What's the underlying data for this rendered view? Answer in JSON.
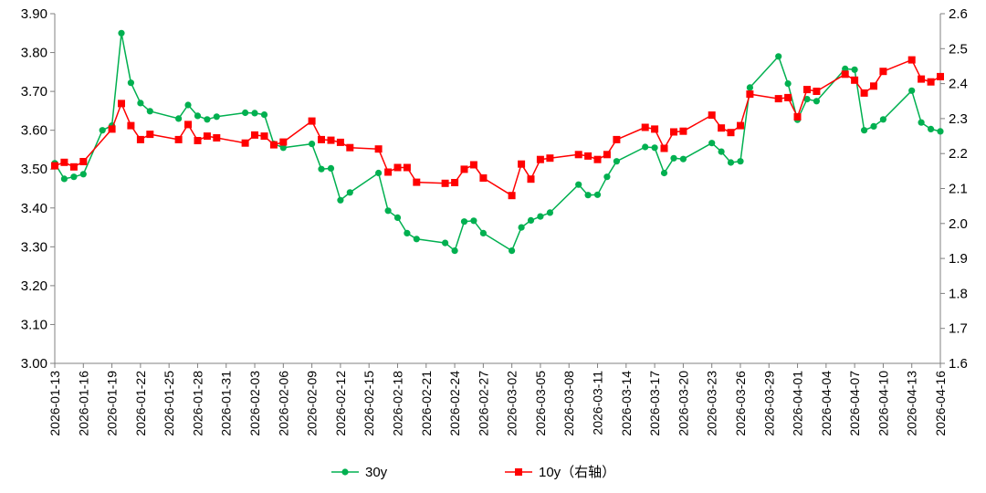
{
  "chart_data": {
    "type": "line",
    "x_tick_labels": [
      "2026-01-13",
      "2026-01-16",
      "2026-01-19",
      "2026-01-22",
      "2026-01-25",
      "2026-01-28",
      "2026-01-31",
      "2026-02-03",
      "2026-02-06",
      "2026-02-09",
      "2026-02-12",
      "2026-02-15",
      "2026-02-18",
      "2026-02-21",
      "2026-02-24",
      "2026-02-27",
      "2026-03-02",
      "2026-03-05",
      "2026-03-08",
      "2026-03-11",
      "2026-03-14",
      "2026-03-17",
      "2026-03-20",
      "2026-03-23",
      "2026-03-26",
      "2026-03-29",
      "2026-04-01",
      "2026-04-04",
      "2026-04-07",
      "2026-04-10",
      "2026-04-13",
      "2026-04-16"
    ],
    "left_axis": {
      "ylim": [
        3.0,
        3.9
      ],
      "ticks": [
        "3.00",
        "3.10",
        "3.20",
        "3.30",
        "3.40",
        "3.50",
        "3.60",
        "3.70",
        "3.80",
        "3.90"
      ]
    },
    "right_axis": {
      "ylim": [
        1.6,
        2.6
      ],
      "ticks": [
        "1.6",
        "1.7",
        "1.8",
        "1.9",
        "2.0",
        "2.1",
        "2.2",
        "2.3",
        "2.4",
        "2.5",
        "2.6"
      ]
    },
    "series": [
      {
        "name": "30y",
        "axis": "left",
        "color": "#00b050",
        "marker": "circle",
        "points": [
          [
            "2026-01-13",
            3.515
          ],
          [
            "2026-01-14",
            3.475
          ],
          [
            "2026-01-15",
            3.48
          ],
          [
            "2026-01-16",
            3.487
          ],
          [
            "2026-01-18",
            3.6
          ],
          [
            "2026-01-19",
            3.612
          ],
          [
            "2026-01-20",
            3.85
          ],
          [
            "2026-01-21",
            3.722
          ],
          [
            "2026-01-22",
            3.67
          ],
          [
            "2026-01-23",
            3.649
          ],
          [
            "2026-01-26",
            3.63
          ],
          [
            "2026-01-27",
            3.665
          ],
          [
            "2026-01-28",
            3.637
          ],
          [
            "2026-01-29",
            3.628
          ],
          [
            "2026-01-30",
            3.635
          ],
          [
            "2026-02-02",
            3.645
          ],
          [
            "2026-02-03",
            3.644
          ],
          [
            "2026-02-04",
            3.64
          ],
          [
            "2026-02-05",
            3.565
          ],
          [
            "2026-02-06",
            3.555
          ],
          [
            "2026-02-09",
            3.565
          ],
          [
            "2026-02-10",
            3.5
          ],
          [
            "2026-02-11",
            3.502
          ],
          [
            "2026-02-12",
            3.42
          ],
          [
            "2026-02-13",
            3.44
          ],
          [
            "2026-02-16",
            3.49
          ],
          [
            "2026-02-17",
            3.393
          ],
          [
            "2026-02-18",
            3.375
          ],
          [
            "2026-02-19",
            3.335
          ],
          [
            "2026-02-20",
            3.32
          ],
          [
            "2026-02-23",
            3.31
          ],
          [
            "2026-02-24",
            3.29
          ],
          [
            "2026-02-25",
            3.365
          ],
          [
            "2026-02-26",
            3.367
          ],
          [
            "2026-02-27",
            3.335
          ],
          [
            "2026-03-02",
            3.29
          ],
          [
            "2026-03-03",
            3.35
          ],
          [
            "2026-03-04",
            3.368
          ],
          [
            "2026-03-05",
            3.378
          ],
          [
            "2026-03-06",
            3.388
          ],
          [
            "2026-03-09",
            3.46
          ],
          [
            "2026-03-10",
            3.433
          ],
          [
            "2026-03-11",
            3.434
          ],
          [
            "2026-03-12",
            3.48
          ],
          [
            "2026-03-13",
            3.52
          ],
          [
            "2026-03-16",
            3.557
          ],
          [
            "2026-03-17",
            3.555
          ],
          [
            "2026-03-18",
            3.49
          ],
          [
            "2026-03-19",
            3.528
          ],
          [
            "2026-03-20",
            3.526
          ],
          [
            "2026-03-23",
            3.567
          ],
          [
            "2026-03-24",
            3.545
          ],
          [
            "2026-03-25",
            3.517
          ],
          [
            "2026-03-26",
            3.52
          ],
          [
            "2026-03-27",
            3.71
          ],
          [
            "2026-03-30",
            3.79
          ],
          [
            "2026-03-31",
            3.72
          ],
          [
            "2026-04-01",
            3.627
          ],
          [
            "2026-04-02",
            3.68
          ],
          [
            "2026-04-03",
            3.675
          ],
          [
            "2026-04-06",
            3.758
          ],
          [
            "2026-04-07",
            3.756
          ],
          [
            "2026-04-08",
            3.6
          ],
          [
            "2026-04-09",
            3.61
          ],
          [
            "2026-04-10",
            3.628
          ],
          [
            "2026-04-13",
            3.702
          ],
          [
            "2026-04-14",
            3.62
          ],
          [
            "2026-04-15",
            3.603
          ],
          [
            "2026-04-16",
            3.597
          ]
        ]
      },
      {
        "name": "10y（右轴）",
        "axis": "right",
        "color": "#ff0000",
        "marker": "square",
        "points": [
          [
            "2026-01-13",
            2.165
          ],
          [
            "2026-01-14",
            2.175
          ],
          [
            "2026-01-15",
            2.162
          ],
          [
            "2026-01-16",
            2.177
          ],
          [
            "2026-01-19",
            2.27
          ],
          [
            "2026-01-20",
            2.343
          ],
          [
            "2026-01-21",
            2.28
          ],
          [
            "2026-01-22",
            2.24
          ],
          [
            "2026-01-23",
            2.255
          ],
          [
            "2026-01-26",
            2.24
          ],
          [
            "2026-01-27",
            2.283
          ],
          [
            "2026-01-28",
            2.237
          ],
          [
            "2026-01-29",
            2.25
          ],
          [
            "2026-01-30",
            2.245
          ],
          [
            "2026-02-02",
            2.23
          ],
          [
            "2026-02-03",
            2.253
          ],
          [
            "2026-02-04",
            2.25
          ],
          [
            "2026-02-05",
            2.225
          ],
          [
            "2026-02-06",
            2.233
          ],
          [
            "2026-02-09",
            2.293
          ],
          [
            "2026-02-10",
            2.24
          ],
          [
            "2026-02-11",
            2.238
          ],
          [
            "2026-02-12",
            2.232
          ],
          [
            "2026-02-13",
            2.217
          ],
          [
            "2026-02-16",
            2.213
          ],
          [
            "2026-02-17",
            2.147
          ],
          [
            "2026-02-18",
            2.16
          ],
          [
            "2026-02-19",
            2.16
          ],
          [
            "2026-02-20",
            2.118
          ],
          [
            "2026-02-23",
            2.115
          ],
          [
            "2026-02-24",
            2.117
          ],
          [
            "2026-02-25",
            2.155
          ],
          [
            "2026-02-26",
            2.168
          ],
          [
            "2026-02-27",
            2.13
          ],
          [
            "2026-03-02",
            2.08
          ],
          [
            "2026-03-03",
            2.17
          ],
          [
            "2026-03-04",
            2.127
          ],
          [
            "2026-03-05",
            2.183
          ],
          [
            "2026-03-06",
            2.187
          ],
          [
            "2026-03-09",
            2.197
          ],
          [
            "2026-03-10",
            2.193
          ],
          [
            "2026-03-11",
            2.183
          ],
          [
            "2026-03-12",
            2.197
          ],
          [
            "2026-03-13",
            2.24
          ],
          [
            "2026-03-16",
            2.275
          ],
          [
            "2026-03-17",
            2.27
          ],
          [
            "2026-03-18",
            2.215
          ],
          [
            "2026-03-19",
            2.262
          ],
          [
            "2026-03-20",
            2.264
          ],
          [
            "2026-03-23",
            2.31
          ],
          [
            "2026-03-24",
            2.273
          ],
          [
            "2026-03-25",
            2.26
          ],
          [
            "2026-03-26",
            2.28
          ],
          [
            "2026-03-27",
            2.37
          ],
          [
            "2026-03-30",
            2.357
          ],
          [
            "2026-03-31",
            2.36
          ],
          [
            "2026-04-01",
            2.305
          ],
          [
            "2026-04-02",
            2.383
          ],
          [
            "2026-04-03",
            2.378
          ],
          [
            "2026-04-06",
            2.427
          ],
          [
            "2026-04-07",
            2.41
          ],
          [
            "2026-04-08",
            2.373
          ],
          [
            "2026-04-09",
            2.393
          ],
          [
            "2026-04-10",
            2.435
          ],
          [
            "2026-04-13",
            2.468
          ],
          [
            "2026-04-14",
            2.413
          ],
          [
            "2026-04-15",
            2.405
          ],
          [
            "2026-04-16",
            2.42
          ]
        ]
      }
    ],
    "legend": {
      "position": "bottom",
      "items": [
        "30y",
        "10y（右轴）"
      ]
    },
    "grid": false
  }
}
